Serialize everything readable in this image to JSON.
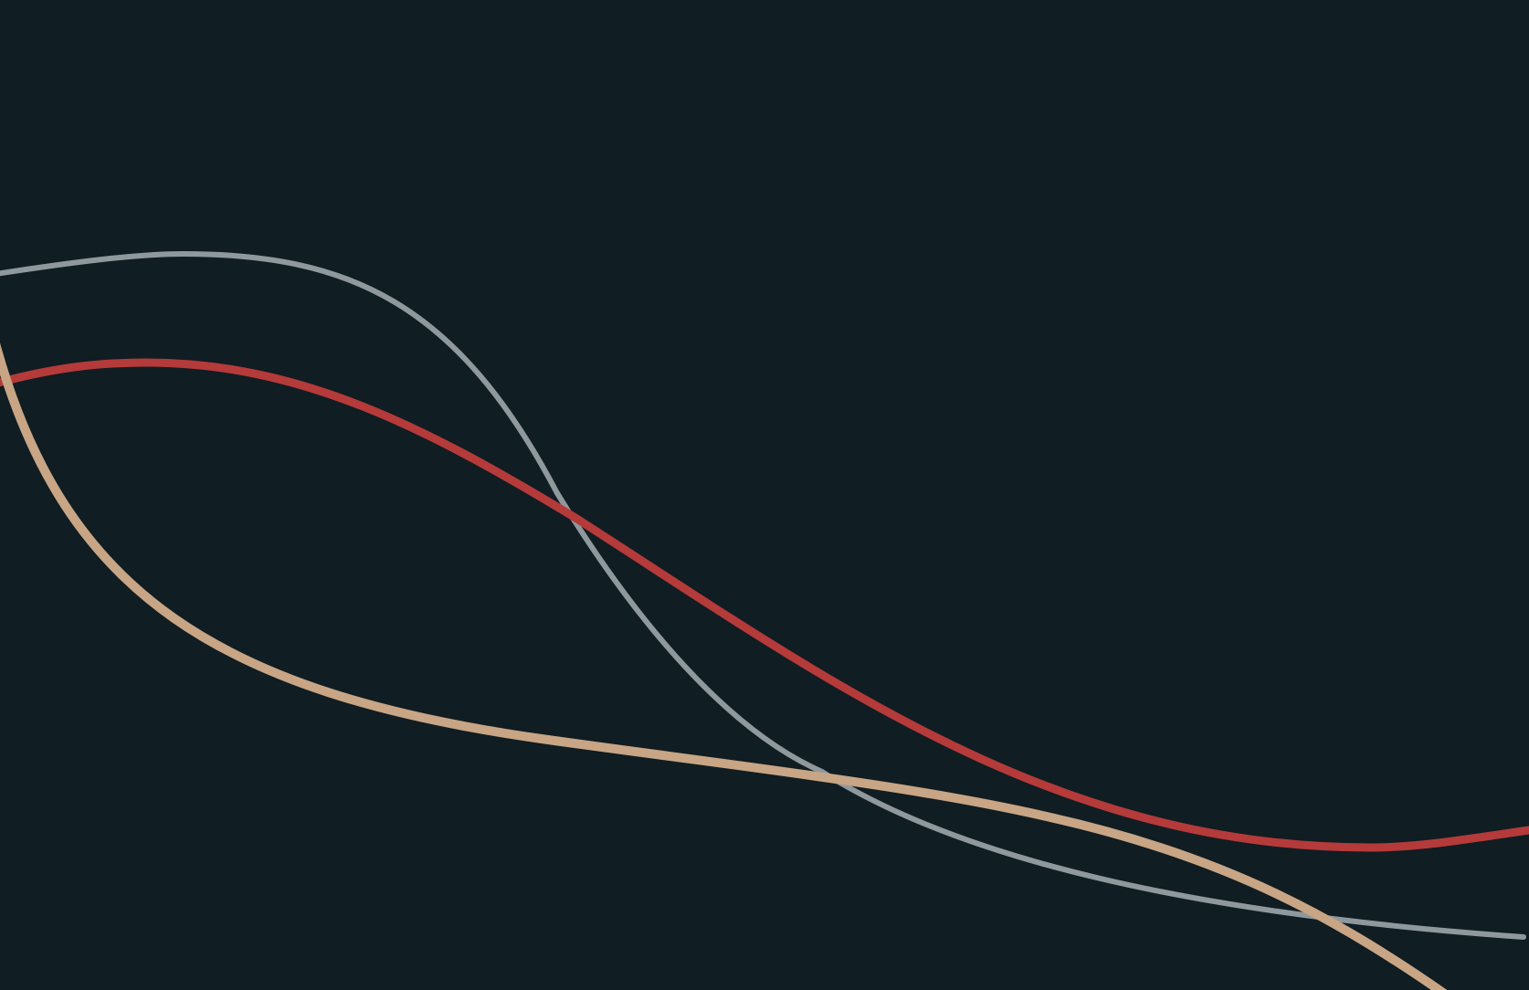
{
  "background_color": "#101d22",
  "strokes": [
    {
      "name": "gray-curve",
      "color": "#8f999d"
    },
    {
      "name": "red-curve",
      "color": "#b53a3a"
    },
    {
      "name": "tan-curve",
      "color": "#c7a585"
    }
  ]
}
